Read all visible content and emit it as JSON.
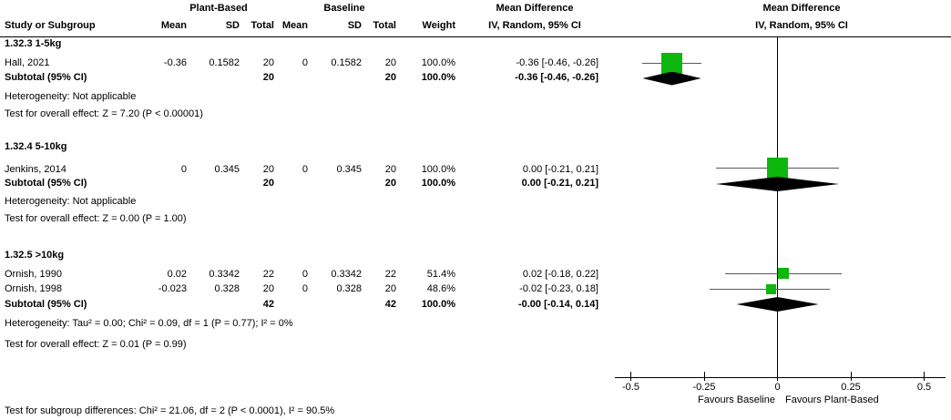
{
  "header": {
    "study_col": "Study or Subgroup",
    "group_plant": "Plant-Based",
    "group_baseline": "Baseline",
    "mean": "Mean",
    "sd": "SD",
    "total": "Total",
    "mean2": "Mean",
    "sd2": "SD",
    "total2": "Total",
    "weight": "Weight",
    "md_stats_title": "Mean Difference",
    "md_stats_sub": "IV, Random, 95% CI",
    "md_plot_title": "Mean Difference",
    "md_plot_sub": "IV, Random, 95% CI"
  },
  "sections": [
    {
      "label": "1.32.3 1-5kg",
      "studies": [
        {
          "name": "Hall, 2021",
          "mean": "-0.36",
          "sd": "0.1582",
          "total": "20",
          "mean2": "0",
          "sd2": "0.1582",
          "total2": "20",
          "weight": "100.0%",
          "ci": "-0.36 [-0.46, -0.26]"
        }
      ],
      "subtotal": {
        "label": "Subtotal (95% CI)",
        "total": "20",
        "total2": "20",
        "weight": "100.0%",
        "ci": "-0.36 [-0.46, -0.26]"
      },
      "heterogeneity": "Heterogeneity: Not applicable",
      "overall_test": "Test for overall effect: Z = 7.20 (P < 0.00001)"
    },
    {
      "label": "1.32.4 5-10kg",
      "studies": [
        {
          "name": "Jenkins, 2014",
          "mean": "0",
          "sd": "0.345",
          "total": "20",
          "mean2": "0",
          "sd2": "0.345",
          "total2": "20",
          "weight": "100.0%",
          "ci": "0.00 [-0.21, 0.21]"
        }
      ],
      "subtotal": {
        "label": "Subtotal (95% CI)",
        "total": "20",
        "total2": "20",
        "weight": "100.0%",
        "ci": "0.00 [-0.21, 0.21]"
      },
      "heterogeneity": "Heterogeneity: Not applicable",
      "overall_test": "Test for overall effect: Z = 0.00 (P = 1.00)"
    },
    {
      "label": "1.32.5 >10kg",
      "studies": [
        {
          "name": "Ornish, 1990",
          "mean": "0.02",
          "sd": "0.3342",
          "total": "22",
          "mean2": "0",
          "sd2": "0.3342",
          "total2": "22",
          "weight": "51.4%",
          "ci": "0.02 [-0.18, 0.22]"
        },
        {
          "name": "Ornish, 1998",
          "mean": "-0.023",
          "sd": "0.328",
          "total": "20",
          "mean2": "0",
          "sd2": "0.328",
          "total2": "20",
          "weight": "48.6%",
          "ci": "-0.02 [-0.23, 0.18]"
        }
      ],
      "subtotal": {
        "label": "Subtotal (95% CI)",
        "total": "42",
        "total2": "42",
        "weight": "100.0%",
        "ci": "-0.00 [-0.14, 0.14]"
      },
      "heterogeneity": "Heterogeneity: Tau² = 0.00; Chi² = 0.09, df = 1 (P = 0.77); I² = 0%",
      "overall_test": "Test for overall effect: Z = 0.01 (P = 0.99)"
    }
  ],
  "footer": "Test for subgroup differences: Chi² = 21.06, df = 2 (P < 0.0001), I² = 90.5%",
  "axis": {
    "tick_labels": [
      "-0.5",
      "-0.25",
      "0",
      "0.25",
      "0.5"
    ],
    "favours_left": "Favours Baseline",
    "favours_right": "Favours Plant-Based"
  },
  "chart_data": {
    "type": "scatter",
    "subtype": "forest-plot",
    "title": "Mean Difference",
    "effect_measure": "IV, Random, 95% CI",
    "xlim": [
      -0.5,
      0.5
    ],
    "x_ticks": [
      -0.5,
      -0.25,
      0,
      0.25,
      0.5
    ],
    "xlabel_left": "Favours Baseline",
    "xlabel_right": "Favours Plant-Based",
    "marker_color": "#0DB70D",
    "groups": [
      {
        "name": "1.32.3 1-5kg",
        "points": [
          {
            "study": "Hall, 2021",
            "md": -0.36,
            "ci_low": -0.46,
            "ci_high": -0.26,
            "weight_pct": 100.0
          }
        ],
        "subtotal": {
          "md": -0.36,
          "ci_low": -0.46,
          "ci_high": -0.26
        }
      },
      {
        "name": "1.32.4 5-10kg",
        "points": [
          {
            "study": "Jenkins, 2014",
            "md": 0.0,
            "ci_low": -0.21,
            "ci_high": 0.21,
            "weight_pct": 100.0
          }
        ],
        "subtotal": {
          "md": 0.0,
          "ci_low": -0.21,
          "ci_high": 0.21
        }
      },
      {
        "name": "1.32.5 >10kg",
        "points": [
          {
            "study": "Ornish, 1990",
            "md": 0.02,
            "ci_low": -0.18,
            "ci_high": 0.22,
            "weight_pct": 51.4
          },
          {
            "study": "Ornish, 1998",
            "md": -0.023,
            "ci_low": -0.23,
            "ci_high": 0.18,
            "weight_pct": 48.6
          }
        ],
        "subtotal": {
          "md": -0.0,
          "ci_low": -0.14,
          "ci_high": 0.14
        }
      }
    ]
  }
}
